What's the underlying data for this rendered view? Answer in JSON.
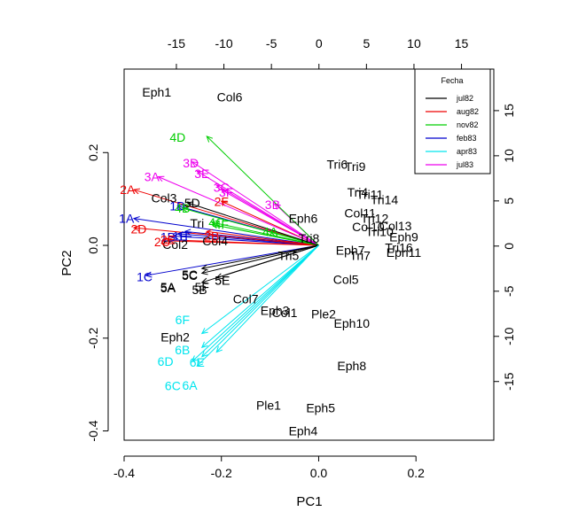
{
  "chart_data": {
    "type": "scatter",
    "subtype": "biplot",
    "xlabel": "PC1",
    "ylabel": "PC2",
    "xlim": [
      -0.4,
      0.36
    ],
    "ylim": [
      -0.42,
      0.38
    ],
    "xticks": [
      -0.4,
      -0.2,
      0.0,
      0.2
    ],
    "xtick_labels": [
      "-0.4",
      "-0.2",
      "0.0",
      "0.2"
    ],
    "yticks": [
      -0.4,
      -0.2,
      0.0,
      0.2
    ],
    "ytick_labels": [
      "-0.4",
      "-0.2",
      "0.0",
      "0.2"
    ],
    "top_axis": {
      "lim": [
        -20.5,
        18.4
      ],
      "ticks": [
        -15,
        -10,
        -5,
        0,
        5,
        10,
        15
      ],
      "tick_labels": [
        "-15",
        "-10",
        "-5",
        "0",
        "5",
        "10",
        "15"
      ]
    },
    "right_axis": {
      "lim": [
        -21.5,
        19.6
      ],
      "ticks": [
        -15,
        -10,
        -5,
        0,
        5,
        10,
        15
      ],
      "tick_labels": [
        "-15",
        "-10",
        "-5",
        "0",
        "5",
        "10",
        "15"
      ]
    },
    "grid": false,
    "legend": {
      "title": "Fecha",
      "position": "top-right",
      "entries": [
        {
          "label": "jul82",
          "color": "#000000"
        },
        {
          "label": "aug82",
          "color": "#ee0000"
        },
        {
          "label": "nov82",
          "color": "#00cd00"
        },
        {
          "label": "feb83",
          "color": "#0000cd"
        },
        {
          "label": "apr83",
          "color": "#00e5ee"
        },
        {
          "label": "jul83",
          "color": "#ee00ee"
        }
      ]
    },
    "observations": [
      {
        "label": "Eph1",
        "x": -0.333,
        "y": 0.33
      },
      {
        "label": "Col6",
        "x": -0.183,
        "y": 0.32
      },
      {
        "label": "Tri6",
        "x": 0.038,
        "y": 0.175
      },
      {
        "label": "Tri9",
        "x": 0.075,
        "y": 0.17
      },
      {
        "label": "Tri4",
        "x": 0.08,
        "y": 0.115
      },
      {
        "label": "Tri11",
        "x": 0.105,
        "y": 0.11
      },
      {
        "label": "Tri14",
        "x": 0.135,
        "y": 0.098
      },
      {
        "label": "Col11",
        "x": 0.085,
        "y": 0.07
      },
      {
        "label": "Col3",
        "x": -0.318,
        "y": 0.102
      },
      {
        "label": "Eph6",
        "x": -0.032,
        "y": 0.058
      },
      {
        "label": "Tri",
        "x": -0.25,
        "y": 0.048
      },
      {
        "label": "Tri12",
        "x": 0.115,
        "y": 0.058
      },
      {
        "label": "Col13",
        "x": 0.158,
        "y": 0.042
      },
      {
        "label": "Col10",
        "x": 0.102,
        "y": 0.04
      },
      {
        "label": "Tri10",
        "x": 0.125,
        "y": 0.03
      },
      {
        "label": "Eph9",
        "x": 0.175,
        "y": 0.018
      },
      {
        "label": "Tri16",
        "x": 0.165,
        "y": -0.005
      },
      {
        "label": "Eph11",
        "x": 0.175,
        "y": -0.015
      },
      {
        "label": "Eph7",
        "x": 0.065,
        "y": -0.01
      },
      {
        "label": "Tri7",
        "x": 0.085,
        "y": -0.022
      },
      {
        "label": "Col2",
        "x": -0.295,
        "y": 0.002
      },
      {
        "label": "Col4",
        "x": -0.213,
        "y": 0.01
      },
      {
        "label": "Tri8",
        "x": -0.02,
        "y": 0.015
      },
      {
        "label": "Tri5",
        "x": -0.062,
        "y": -0.022
      },
      {
        "label": "5C",
        "x": -0.265,
        "y": -0.065
      },
      {
        "label": "5A",
        "x": -0.31,
        "y": -0.092
      },
      {
        "label": "5B",
        "x": -0.245,
        "y": -0.095
      },
      {
        "label": "5E",
        "x": -0.198,
        "y": -0.075
      },
      {
        "label": "Col5",
        "x": 0.056,
        "y": -0.073
      },
      {
        "label": "Col7",
        "x": -0.15,
        "y": -0.115
      },
      {
        "label": "Eph3",
        "x": -0.09,
        "y": -0.14
      },
      {
        "label": "Col1",
        "x": -0.07,
        "y": -0.145
      },
      {
        "label": "Ple2",
        "x": 0.01,
        "y": -0.148
      },
      {
        "label": "Eph10",
        "x": 0.068,
        "y": -0.168
      },
      {
        "label": "Eph2",
        "x": -0.295,
        "y": -0.198
      },
      {
        "label": "Eph8",
        "x": 0.068,
        "y": -0.26
      },
      {
        "label": "Ple1",
        "x": -0.103,
        "y": -0.345
      },
      {
        "label": "Eph5",
        "x": 0.004,
        "y": -0.35
      },
      {
        "label": "Eph4",
        "x": -0.032,
        "y": -0.4
      }
    ],
    "variables": [
      {
        "label": "1A",
        "group": "feb83",
        "x": -0.38,
        "y": 0.058,
        "tx": -0.395,
        "ty": 0.058
      },
      {
        "label": "1B",
        "group": "feb83",
        "x": -0.3,
        "y": 0.02,
        "tx": -0.31,
        "ty": 0.018
      },
      {
        "label": "1C",
        "group": "feb83",
        "x": -0.355,
        "y": -0.065,
        "tx": -0.358,
        "ty": -0.068
      },
      {
        "label": "1D",
        "group": "feb83",
        "x": -0.29,
        "y": 0.085,
        "tx": -0.29,
        "ty": 0.085
      },
      {
        "label": "1E",
        "group": "feb83",
        "x": -0.29,
        "y": 0.025,
        "tx": -0.285,
        "ty": 0.02
      },
      {
        "label": "1F",
        "group": "feb83",
        "x": -0.275,
        "y": 0.03,
        "tx": -0.275,
        "ty": 0.02
      },
      {
        "label": "2A",
        "group": "aug82",
        "x": -0.38,
        "y": 0.12,
        "tx": -0.393,
        "ty": 0.12
      },
      {
        "label": "2B",
        "group": "aug82",
        "x": -0.23,
        "y": 0.03,
        "tx": -0.22,
        "ty": 0.02
      },
      {
        "label": "2C",
        "group": "aug82",
        "x": -0.32,
        "y": 0.01,
        "tx": -0.322,
        "ty": 0.008
      },
      {
        "label": "2D",
        "group": "aug82",
        "x": -0.38,
        "y": 0.038,
        "tx": -0.37,
        "ty": 0.035
      },
      {
        "label": "2E",
        "group": "aug82",
        "x": -0.31,
        "y": 0.012,
        "tx": -0.31,
        "ty": 0.012
      },
      {
        "label": "2F",
        "group": "aug82",
        "x": -0.2,
        "y": 0.095,
        "tx": -0.2,
        "ty": 0.095
      },
      {
        "label": "3A",
        "group": "jul83",
        "x": -0.33,
        "y": 0.148,
        "tx": -0.343,
        "ty": 0.148
      },
      {
        "label": "3C",
        "group": "jul83",
        "x": -0.21,
        "y": 0.13,
        "tx": -0.2,
        "ty": 0.125
      },
      {
        "label": "3D",
        "group": "jul83",
        "x": -0.26,
        "y": 0.18,
        "tx": -0.263,
        "ty": 0.178
      },
      {
        "label": "3E",
        "group": "jul83",
        "x": -0.25,
        "y": 0.16,
        "tx": -0.24,
        "ty": 0.155
      },
      {
        "label": "3F",
        "group": "jul83",
        "x": -0.2,
        "y": 0.12,
        "tx": -0.19,
        "ty": 0.115
      },
      {
        "label": "3B",
        "group": "jul83",
        "x": -0.09,
        "y": 0.09,
        "tx": -0.095,
        "ty": 0.088
      },
      {
        "label": "4D",
        "group": "nov82",
        "x": -0.23,
        "y": 0.235,
        "tx": -0.29,
        "ty": 0.233
      },
      {
        "label": "4B",
        "group": "nov82",
        "x": -0.28,
        "y": 0.08,
        "tx": -0.28,
        "ty": 0.08
      },
      {
        "label": "4C",
        "group": "nov82",
        "x": -0.22,
        "y": 0.05,
        "tx": -0.21,
        "ty": 0.05
      },
      {
        "label": "4F",
        "group": "nov82",
        "x": -0.22,
        "y": 0.045,
        "tx": -0.2,
        "ty": 0.045
      },
      {
        "label": "4A",
        "group": "nov82",
        "x": -0.1,
        "y": 0.03,
        "tx": -0.1,
        "ty": 0.03
      },
      {
        "label": "5D",
        "group": "jul82",
        "x": -0.27,
        "y": 0.092,
        "tx": -0.26,
        "ty": 0.092
      },
      {
        "label": "5A",
        "group": "jul82",
        "x": -0.24,
        "y": -0.05,
        "tx": -0.31,
        "ty": -0.09
      },
      {
        "label": "5C",
        "group": "jul82",
        "x": -0.24,
        "y": -0.06,
        "tx": -0.265,
        "ty": -0.063
      },
      {
        "label": "5E",
        "group": "jul82",
        "x": -0.21,
        "y": -0.07,
        "tx": -0.198,
        "ty": -0.075
      },
      {
        "label": "5F",
        "group": "jul82",
        "x": -0.24,
        "y": -0.08,
        "tx": -0.24,
        "ty": -0.09
      },
      {
        "label": "6A",
        "group": "apr83",
        "x": -0.24,
        "y": -0.24,
        "tx": -0.265,
        "ty": -0.302
      },
      {
        "label": "6B",
        "group": "apr83",
        "x": -0.24,
        "y": -0.22,
        "tx": -0.28,
        "ty": -0.225
      },
      {
        "label": "6C",
        "group": "apr83",
        "x": -0.25,
        "y": -0.26,
        "tx": -0.3,
        "ty": -0.303
      },
      {
        "label": "6D",
        "group": "apr83",
        "x": -0.26,
        "y": -0.25,
        "tx": -0.315,
        "ty": -0.25
      },
      {
        "label": "6E",
        "group": "apr83",
        "x": -0.21,
        "y": -0.23,
        "tx": -0.25,
        "ty": -0.252
      },
      {
        "label": "6F",
        "group": "apr83",
        "x": -0.24,
        "y": -0.19,
        "tx": -0.28,
        "ty": -0.16
      }
    ]
  }
}
